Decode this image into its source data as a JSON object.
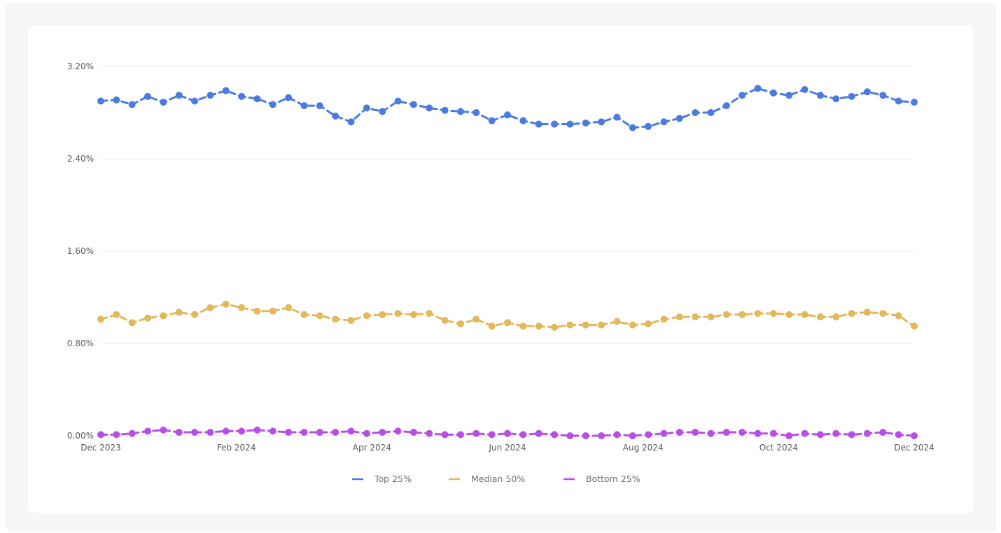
{
  "chart_data": {
    "type": "line",
    "title": "",
    "xlabel": "",
    "ylabel": "",
    "x_ticks": [
      "Dec 2023",
      "Feb 2024",
      "Apr 2024",
      "Jun 2024",
      "Aug 2024",
      "Oct 2024",
      "Dec 2024"
    ],
    "y_ticks": [
      "0.00%",
      "0.80%",
      "1.60%",
      "2.40%",
      "3.20%"
    ],
    "ylim": [
      0,
      3.2
    ],
    "y_unit": "%",
    "x_range": [
      "2023-12-01",
      "2024-12-01"
    ],
    "grid": true,
    "legend_position": "bottom",
    "series": [
      {
        "name": "Top 25%",
        "color": "#4a7be0",
        "values": [
          2.9,
          2.91,
          2.87,
          2.94,
          2.89,
          2.95,
          2.9,
          2.95,
          2.99,
          2.94,
          2.92,
          2.87,
          2.93,
          2.86,
          2.86,
          2.77,
          2.72,
          2.84,
          2.81,
          2.9,
          2.87,
          2.84,
          2.82,
          2.81,
          2.8,
          2.73,
          2.78,
          2.73,
          2.7,
          2.7,
          2.7,
          2.71,
          2.72,
          2.76,
          2.67,
          2.68,
          2.72,
          2.75,
          2.8,
          2.8,
          2.86,
          2.95,
          3.01,
          2.97,
          2.95,
          3.0,
          2.95,
          2.92,
          2.94,
          2.98,
          2.95,
          2.9,
          2.89
        ]
      },
      {
        "name": "Median 50%",
        "color": "#e3b85b",
        "values": [
          1.01,
          1.05,
          0.98,
          1.02,
          1.04,
          1.07,
          1.05,
          1.11,
          1.14,
          1.11,
          1.08,
          1.08,
          1.11,
          1.05,
          1.04,
          1.01,
          1.0,
          1.04,
          1.05,
          1.06,
          1.05,
          1.06,
          1.0,
          0.97,
          1.01,
          0.95,
          0.98,
          0.95,
          0.95,
          0.94,
          0.96,
          0.96,
          0.96,
          0.99,
          0.96,
          0.97,
          1.01,
          1.03,
          1.03,
          1.03,
          1.05,
          1.05,
          1.06,
          1.06,
          1.05,
          1.05,
          1.03,
          1.03,
          1.06,
          1.07,
          1.06,
          1.04,
          0.95
        ]
      },
      {
        "name": "Bottom 25%",
        "color": "#b94ee6",
        "values": [
          0.01,
          0.01,
          0.02,
          0.04,
          0.05,
          0.03,
          0.03,
          0.03,
          0.04,
          0.04,
          0.05,
          0.04,
          0.03,
          0.03,
          0.03,
          0.03,
          0.04,
          0.02,
          0.03,
          0.04,
          0.03,
          0.02,
          0.01,
          0.01,
          0.02,
          0.01,
          0.02,
          0.01,
          0.02,
          0.01,
          0.0,
          0.0,
          0.0,
          0.01,
          0.0,
          0.01,
          0.02,
          0.03,
          0.03,
          0.02,
          0.03,
          0.03,
          0.02,
          0.02,
          0.0,
          0.02,
          0.01,
          0.02,
          0.01,
          0.02,
          0.03,
          0.01,
          0.0
        ]
      }
    ]
  }
}
